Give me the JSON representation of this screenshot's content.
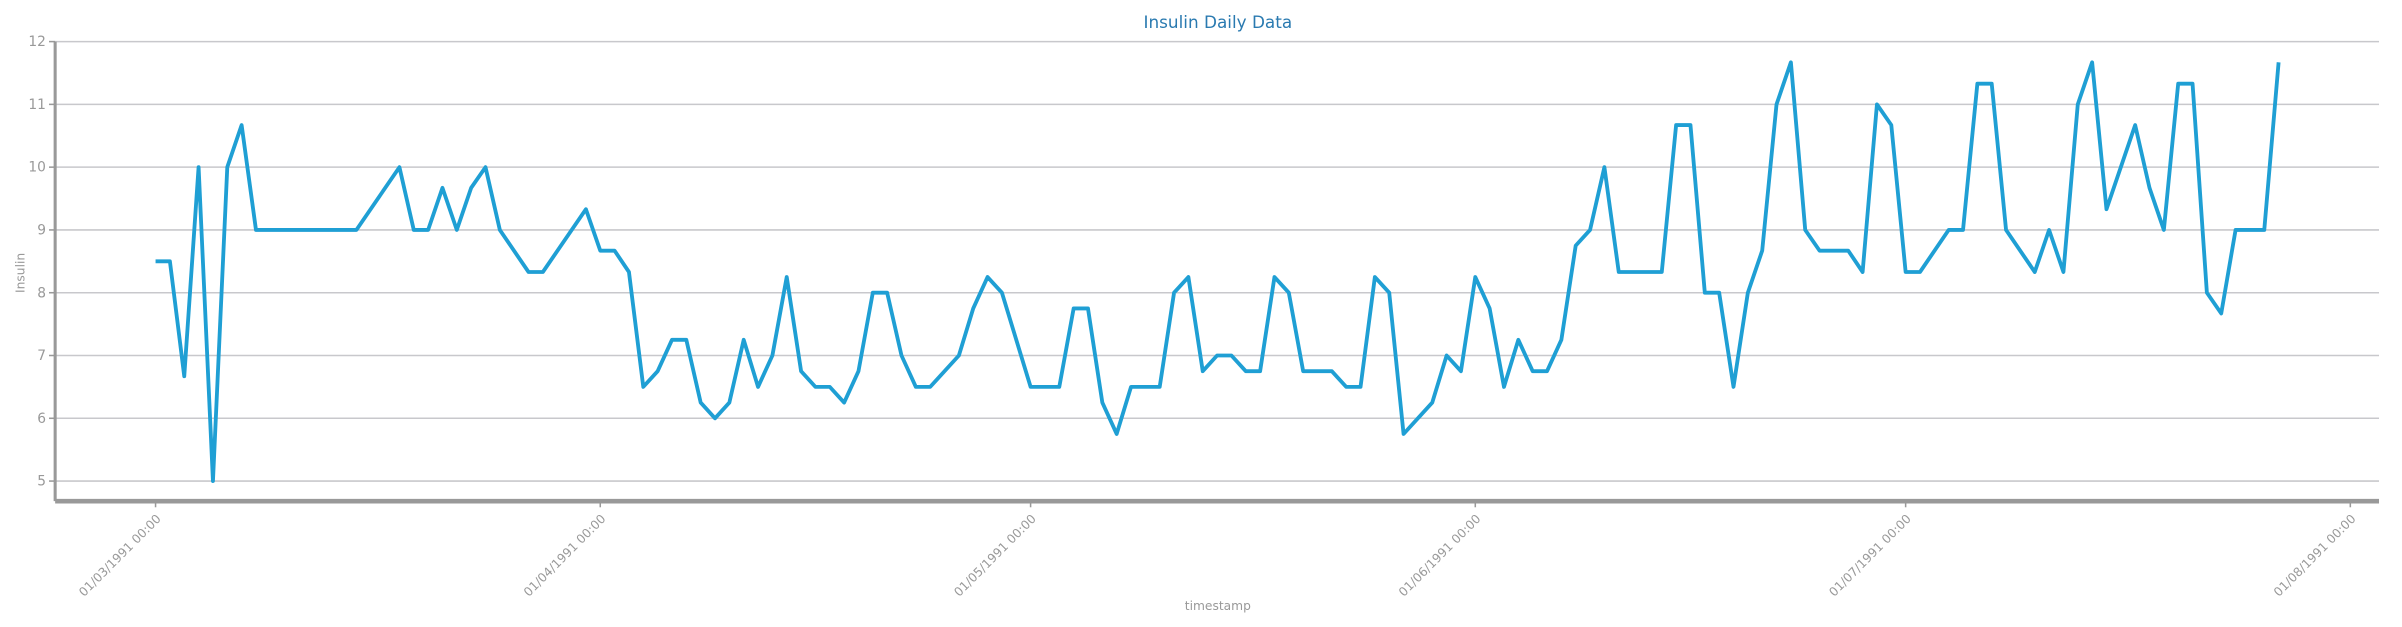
{
  "chart_data": {
    "type": "line",
    "title": "Insulin Daily Data",
    "xlabel": "timestamp",
    "ylabel": "Insulin",
    "color": "#1f9fd4",
    "x": [
      "1991-03-01",
      "1991-03-02",
      "1991-03-03",
      "1991-03-04",
      "1991-03-05",
      "1991-03-06",
      "1991-03-07",
      "1991-03-08",
      "1991-03-15",
      "1991-03-18",
      "1991-03-19",
      "1991-03-20",
      "1991-03-21",
      "1991-03-22",
      "1991-03-23",
      "1991-03-24",
      "1991-03-25",
      "1991-03-27",
      "1991-03-28",
      "1991-03-31",
      "1991-04-01",
      "1991-04-02",
      "1991-04-03",
      "1991-04-04",
      "1991-04-05",
      "1991-04-06",
      "1991-04-07",
      "1991-04-08",
      "1991-04-09",
      "1991-04-10",
      "1991-04-11",
      "1991-04-12",
      "1991-04-13",
      "1991-04-14",
      "1991-04-15",
      "1991-04-16",
      "1991-04-17",
      "1991-04-18",
      "1991-04-19",
      "1991-04-20",
      "1991-04-21",
      "1991-04-22",
      "1991-04-23",
      "1991-04-24",
      "1991-04-26",
      "1991-04-27",
      "1991-04-28",
      "1991-04-29",
      "1991-05-01",
      "1991-05-02",
      "1991-05-03",
      "1991-05-04",
      "1991-05-05",
      "1991-05-06",
      "1991-05-07",
      "1991-05-08",
      "1991-05-10",
      "1991-05-11",
      "1991-05-12",
      "1991-05-13",
      "1991-05-14",
      "1991-05-15",
      "1991-05-16",
      "1991-05-17",
      "1991-05-18",
      "1991-05-19",
      "1991-05-20",
      "1991-05-22",
      "1991-05-23",
      "1991-05-24",
      "1991-05-25",
      "1991-05-26",
      "1991-05-27",
      "1991-05-29",
      "1991-05-30",
      "1991-05-31",
      "1991-06-01",
      "1991-06-02",
      "1991-06-03",
      "1991-06-04",
      "1991-06-05",
      "1991-06-06",
      "1991-06-07",
      "1991-06-08",
      "1991-06-09",
      "1991-06-10",
      "1991-06-11",
      "1991-06-14",
      "1991-06-15",
      "1991-06-16",
      "1991-06-17",
      "1991-06-18",
      "1991-06-19",
      "1991-06-20",
      "1991-06-21",
      "1991-06-22",
      "1991-06-23",
      "1991-06-24",
      "1991-06-25",
      "1991-06-27",
      "1991-06-28",
      "1991-06-29",
      "1991-06-30",
      "1991-07-01",
      "1991-07-02",
      "1991-07-04",
      "1991-07-05",
      "1991-07-06",
      "1991-07-07",
      "1991-07-08",
      "1991-07-10",
      "1991-07-11",
      "1991-07-12",
      "1991-07-13",
      "1991-07-14",
      "1991-07-15",
      "1991-07-17",
      "1991-07-18",
      "1991-07-19",
      "1991-07-20",
      "1991-07-21",
      "1991-07-22",
      "1991-07-23",
      "1991-07-24",
      "1991-07-26",
      "1991-07-27"
    ],
    "values": [
      8.5,
      8.5,
      6.67,
      10,
      5,
      10,
      10.67,
      9,
      9,
      10,
      9,
      9,
      9.67,
      9,
      9.67,
      10,
      9,
      8.33,
      8.33,
      9.33,
      8.67,
      8.67,
      8.33,
      6.5,
      6.75,
      7.25,
      7.25,
      6.25,
      6,
      6.25,
      7.25,
      6.5,
      7,
      8.25,
      6.75,
      6.5,
      6.5,
      6.25,
      6.75,
      8,
      8,
      7,
      6.5,
      6.5,
      7,
      7.75,
      8.25,
      8,
      6.5,
      6.5,
      6.5,
      7.75,
      7.75,
      6.25,
      5.75,
      6.5,
      6.5,
      8,
      8.25,
      6.75,
      7,
      7,
      6.75,
      6.75,
      8.25,
      8,
      6.75,
      6.75,
      6.5,
      6.5,
      8.25,
      8,
      5.75,
      6.25,
      7,
      6.75,
      8.25,
      7.75,
      6.5,
      7.25,
      6.75,
      6.75,
      7.25,
      8.75,
      9,
      10,
      8.33,
      8.33,
      10.67,
      10.67,
      8,
      8,
      6.5,
      8,
      8.67,
      11,
      11.67,
      9,
      8.67,
      8.67,
      8.33,
      11,
      10.67,
      8.33,
      8.33,
      9,
      9,
      11.33,
      11.33,
      9,
      8.33,
      9,
      8.33,
      11,
      11.67,
      9.33,
      10.67,
      9.67,
      9,
      11.33,
      11.33,
      8,
      7.67,
      9,
      9,
      11.67
    ],
    "xlim": [
      "1991-02-22",
      "1991-08-03"
    ],
    "xticks": [
      {
        "value": "1991-03-01",
        "label": "01/03/1991 00:00"
      },
      {
        "value": "1991-04-01",
        "label": "01/04/1991 00:00"
      },
      {
        "value": "1991-05-01",
        "label": "01/05/1991 00:00"
      },
      {
        "value": "1991-06-01",
        "label": "01/06/1991 00:00"
      },
      {
        "value": "1991-07-01",
        "label": "01/07/1991 00:00"
      },
      {
        "value": "1991-08-01",
        "label": "01/08/1991 00:00"
      }
    ],
    "ylim": [
      4.68,
      12
    ],
    "yticks": [
      5,
      6,
      7,
      8,
      9,
      10,
      11,
      12
    ],
    "grid": true
  }
}
